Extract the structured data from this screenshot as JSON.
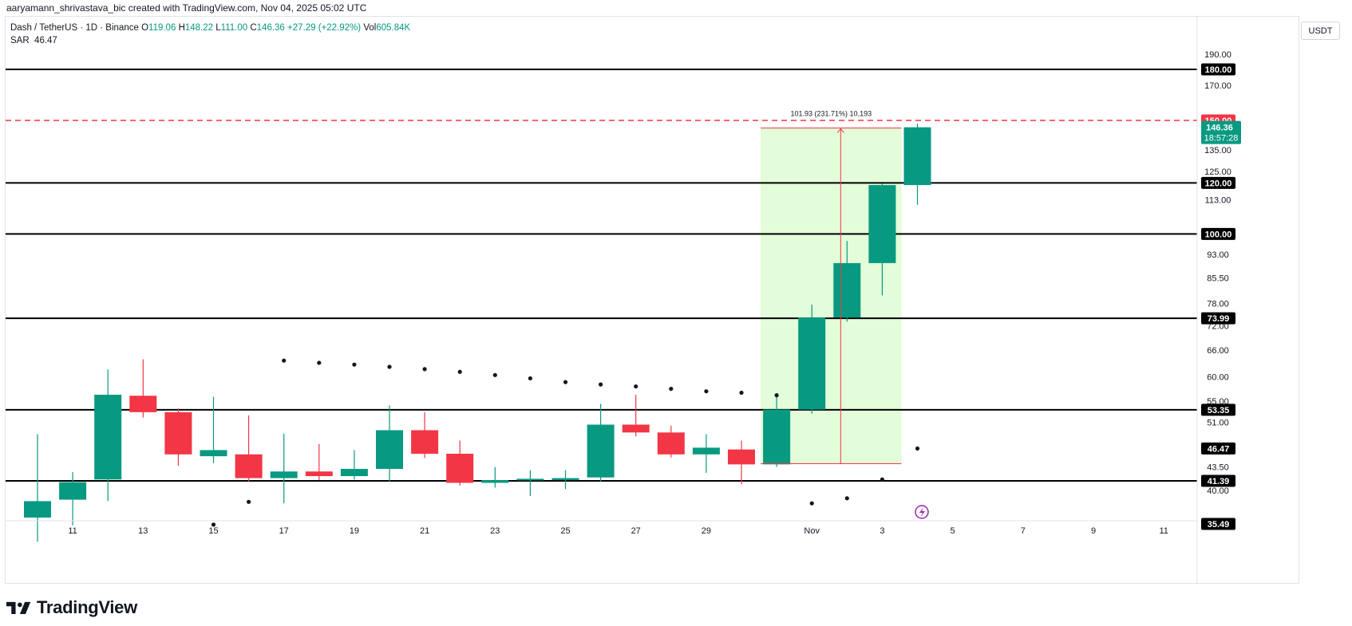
{
  "header": {
    "created_by": "aaryamann_shrivastava_bic created with TradingView.com, Nov 04, 2025 05:02 UTC",
    "symbol": "Dash / TetherUS · 1D · Binance",
    "ohlc": {
      "o_label": "O",
      "o": "119.06",
      "h_label": "H",
      "h": "148.22",
      "l_label": "L",
      "l": "111.00",
      "c_label": "C",
      "c": "146.36",
      "change": "+27.29 (+22.92%)",
      "vol_label": "Vol",
      "vol": "605.84K"
    },
    "indicator": {
      "name": "SAR",
      "value": "46.47"
    }
  },
  "currency_button": "USDT",
  "brand": {
    "name": "TradingView"
  },
  "colors": {
    "up": "#089981",
    "down": "#f23645",
    "range_fill": "#e3fcd9",
    "sar": "#131722",
    "alert": "#f23645",
    "level": "#000000"
  },
  "chart_data": {
    "type": "candlestick",
    "x_ticks": [
      "11",
      "13",
      "15",
      "17",
      "19",
      "21",
      "23",
      "25",
      "27",
      "29",
      "Nov",
      "3",
      "5",
      "7",
      "9",
      "11"
    ],
    "y_ticks": [
      "190.00",
      "170.00",
      "135.00",
      "125.00",
      "113.00",
      "93.00",
      "85.50",
      "78.00",
      "72.00",
      "66.00",
      "60.00",
      "55.00",
      "51.00",
      "43.50",
      "40.00"
    ],
    "y_scale": "log",
    "candles": [
      {
        "date": "Oct 10",
        "o": 36.3,
        "h": 48.9,
        "l": 33.3,
        "c": 38.5
      },
      {
        "date": "Oct 11",
        "o": 38.7,
        "h": 42.7,
        "l": 35.3,
        "c": 41.2
      },
      {
        "date": "Oct 12",
        "o": 41.6,
        "h": 61.6,
        "l": 38.5,
        "c": 56.3
      },
      {
        "date": "Oct 13",
        "o": 56.1,
        "h": 63.9,
        "l": 51.9,
        "c": 52.9
      },
      {
        "date": "Oct 14",
        "o": 52.9,
        "h": 53.6,
        "l": 43.7,
        "c": 45.5
      },
      {
        "date": "Oct 15",
        "o": 45.2,
        "h": 55.9,
        "l": 44.1,
        "c": 46.2
      },
      {
        "date": "Oct 16",
        "o": 45.5,
        "h": 52.3,
        "l": 41.3,
        "c": 41.8
      },
      {
        "date": "Oct 17",
        "o": 41.8,
        "h": 49.0,
        "l": 38.2,
        "c": 42.8
      },
      {
        "date": "Oct 18",
        "o": 42.8,
        "h": 47.2,
        "l": 41.5,
        "c": 42.1
      },
      {
        "date": "Oct 19",
        "o": 42.1,
        "h": 46.2,
        "l": 41.6,
        "c": 43.2
      },
      {
        "date": "Oct 20",
        "o": 43.2,
        "h": 54.2,
        "l": 41.3,
        "c": 49.6
      },
      {
        "date": "Oct 21",
        "o": 49.6,
        "h": 52.9,
        "l": 44.9,
        "c": 45.6
      },
      {
        "date": "Oct 22",
        "o": 45.6,
        "h": 47.8,
        "l": 40.7,
        "c": 41.1
      },
      {
        "date": "Oct 23",
        "o": 41.1,
        "h": 43.5,
        "l": 40.4,
        "c": 41.5
      },
      {
        "date": "Oct 24",
        "o": 41.5,
        "h": 43.0,
        "l": 39.2,
        "c": 41.7
      },
      {
        "date": "Oct 25",
        "o": 41.5,
        "h": 43.0,
        "l": 40.2,
        "c": 41.8
      },
      {
        "date": "Oct 26",
        "o": 41.9,
        "h": 54.5,
        "l": 41.3,
        "c": 50.6
      },
      {
        "date": "Oct 27",
        "o": 50.6,
        "h": 56.3,
        "l": 48.5,
        "c": 49.2
      },
      {
        "date": "Oct 28",
        "o": 49.2,
        "h": 50.4,
        "l": 45.0,
        "c": 45.5
      },
      {
        "date": "Oct 29",
        "o": 45.5,
        "h": 48.9,
        "l": 42.6,
        "c": 46.6
      },
      {
        "date": "Oct 30",
        "o": 46.3,
        "h": 47.8,
        "l": 40.9,
        "c": 43.9
      },
      {
        "date": "Oct 31",
        "o": 43.9,
        "h": 56.2,
        "l": 43.5,
        "c": 53.4
      },
      {
        "date": "Nov 01",
        "o": 53.4,
        "h": 77.7,
        "l": 52.6,
        "c": 74.2
      },
      {
        "date": "Nov 02",
        "o": 74.2,
        "h": 97.5,
        "l": 73.1,
        "c": 90.1
      },
      {
        "date": "Nov 03",
        "o": 90.1,
        "h": 119.6,
        "l": 80.3,
        "c": 119.06
      },
      {
        "date": "Nov 04",
        "o": 119.06,
        "h": 148.22,
        "l": 111.0,
        "c": 146.36
      }
    ],
    "sar": [
      {
        "date": "Oct 15",
        "v": 35.4
      },
      {
        "date": "Oct 16",
        "v": 38.4
      },
      {
        "date": "Oct 17",
        "v": 63.6
      },
      {
        "date": "Oct 18",
        "v": 63.1
      },
      {
        "date": "Oct 19",
        "v": 62.7
      },
      {
        "date": "Oct 20",
        "v": 62.2
      },
      {
        "date": "Oct 21",
        "v": 61.7
      },
      {
        "date": "Oct 22",
        "v": 61.1
      },
      {
        "date": "Oct 23",
        "v": 60.4
      },
      {
        "date": "Oct 24",
        "v": 59.7
      },
      {
        "date": "Oct 25",
        "v": 58.9
      },
      {
        "date": "Oct 26",
        "v": 58.4
      },
      {
        "date": "Oct 27",
        "v": 58.0
      },
      {
        "date": "Oct 28",
        "v": 57.5
      },
      {
        "date": "Oct 29",
        "v": 57.0
      },
      {
        "date": "Oct 30",
        "v": 56.7
      },
      {
        "date": "Oct 31",
        "v": 56.2
      },
      {
        "date": "Nov 01",
        "v": 38.2
      },
      {
        "date": "Nov 02",
        "v": 38.9
      },
      {
        "date": "Nov 03",
        "v": 41.6
      },
      {
        "date": "Nov 04",
        "v": 46.47
      }
    ],
    "levels": [
      {
        "value": 180.0,
        "label": "180.00"
      },
      {
        "value": 120.0,
        "label": "120.00"
      },
      {
        "value": 100.0,
        "label": "100.00"
      },
      {
        "value": 73.99,
        "label": "73.99"
      },
      {
        "value": 53.35,
        "label": "53.35"
      },
      {
        "value": 41.39,
        "label": "41.39"
      }
    ],
    "alert_line": {
      "value": 150.0,
      "label": "150.00"
    },
    "last_price": {
      "value": 146.36,
      "label": "146.36",
      "countdown": "18:57:28"
    },
    "sar_marker": {
      "value": 46.47,
      "label": "46.47"
    },
    "bottom_label": {
      "value": 35.49,
      "label": "35.49"
    },
    "range_measure": {
      "from_date": "Oct 31",
      "to_date": "Nov 04",
      "low": 44.0,
      "high": 146.0,
      "label": "101.93 (231.71%) 10,193"
    }
  }
}
